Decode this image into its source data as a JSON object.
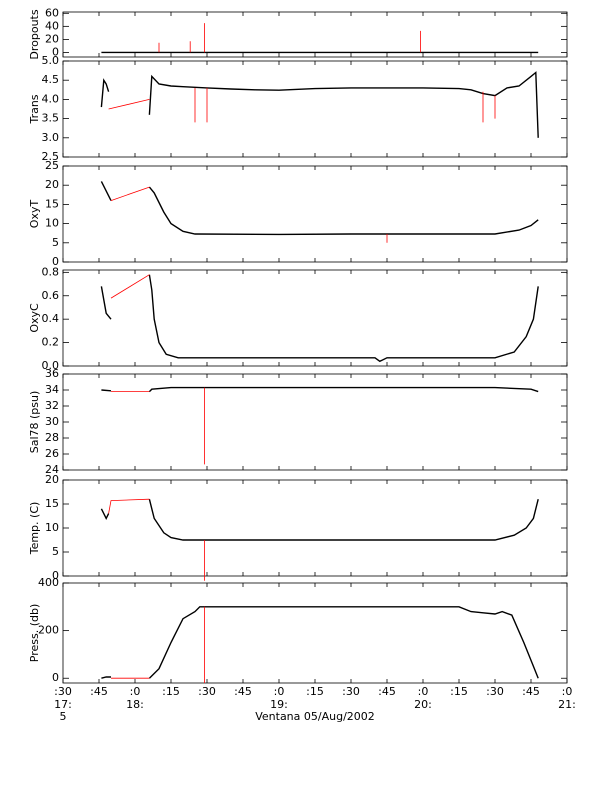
{
  "chart_data": [
    {
      "type": "line",
      "ylabel": "Dropouts",
      "ylim": [
        -7,
        62
      ],
      "yticks": [
        0,
        20,
        40,
        60
      ],
      "series": [
        {
          "color": "#000000",
          "x": [
            "17:46",
            "18:10",
            "18:30",
            "19:00",
            "19:30",
            "20:00",
            "20:30",
            "20:48"
          ],
          "values": [
            0,
            0,
            0,
            0,
            0,
            0,
            0,
            0
          ]
        },
        {
          "color": "#ff0000",
          "x": [
            "18:10",
            "18:10",
            "18:10",
            null,
            "18:23",
            "18:23",
            "18:23",
            null,
            "18:29",
            "18:29",
            "18:29",
            null,
            "19:59",
            "19:59",
            "19:59"
          ],
          "values": [
            0,
            15,
            0,
            null,
            0,
            17,
            0,
            null,
            0,
            45,
            0,
            null,
            0,
            33,
            0
          ]
        }
      ]
    },
    {
      "type": "line",
      "ylabel": "Trans",
      "ylim": [
        2.5,
        5.0
      ],
      "yticks": [
        2.5,
        {
          "value": 3,
          "label": "3.0"
        },
        3.5,
        {
          "value": 4,
          "label": "4.0"
        },
        4.5,
        {
          "value": 5,
          "label": "5.0"
        }
      ],
      "series": [
        {
          "color": "#000000",
          "x": [
            "17:46",
            "17:47",
            "17:48",
            "17:49",
            null,
            "18:06",
            "18:07",
            "18:10",
            "18:15",
            "18:20",
            "18:30",
            "18:40",
            "18:50",
            "19:00",
            "19:15",
            "19:30",
            "19:45",
            "20:00",
            "20:15",
            "20:20",
            "20:25",
            "20:30",
            "20:35",
            "20:40",
            "20:45",
            "20:47",
            "20:48"
          ],
          "values": [
            3.8,
            4.5,
            4.4,
            4.2,
            null,
            3.6,
            4.6,
            4.4,
            4.35,
            4.33,
            4.3,
            4.27,
            4.25,
            4.24,
            4.28,
            4.3,
            4.3,
            4.3,
            4.28,
            4.25,
            4.15,
            4.1,
            4.3,
            4.35,
            4.6,
            4.7,
            3.0
          ]
        },
        {
          "color": "#ff0000",
          "x": [
            "17:49",
            "18:06",
            null,
            "18:25",
            "18:25",
            "18:25",
            null,
            "18:30",
            "18:30",
            "18:30",
            null,
            "20:25",
            "20:25",
            "20:25",
            null,
            "20:30",
            "20:30",
            "20:30"
          ],
          "values": [
            3.75,
            4.0,
            null,
            4.3,
            3.4,
            4.3,
            null,
            4.3,
            3.4,
            4.3,
            null,
            4.2,
            3.4,
            4.2,
            null,
            4.1,
            3.5,
            4.1
          ]
        }
      ]
    },
    {
      "type": "line",
      "ylabel": "OxyT",
      "ylim": [
        0,
        25
      ],
      "yticks": [
        0,
        5,
        10,
        15,
        20,
        25
      ],
      "series": [
        {
          "color": "#000000",
          "x": [
            "17:46",
            "17:50",
            null,
            "18:06",
            "18:08",
            "18:12",
            "18:15",
            "18:20",
            "18:25",
            "19:00",
            "19:30",
            "20:30",
            "20:40",
            "20:45",
            "20:48"
          ],
          "values": [
            21,
            16,
            null,
            19.5,
            18,
            13,
            10,
            8,
            7.3,
            7.2,
            7.3,
            7.3,
            8.3,
            9.5,
            11
          ]
        },
        {
          "color": "#ff0000",
          "x": [
            "17:50",
            "18:06",
            null,
            "19:45",
            "19:45",
            "19:45"
          ],
          "values": [
            16,
            19.5,
            null,
            7.3,
            5,
            7.3
          ]
        }
      ]
    },
    {
      "type": "line",
      "ylabel": "OxyC",
      "ylim": [
        0,
        0.82
      ],
      "yticks": [
        {
          "value": 0,
          "label": "0.0"
        },
        0.2,
        0.4,
        0.6,
        0.8
      ],
      "series": [
        {
          "color": "#000000",
          "x": [
            "17:46",
            "17:48",
            "17:50",
            null,
            "18:06",
            "18:07",
            "18:08",
            "18:10",
            "18:13",
            "18:18",
            "19:40",
            "19:42",
            "19:45",
            "20:30",
            "20:38",
            "20:43",
            "20:46",
            "20:48"
          ],
          "values": [
            0.68,
            0.45,
            0.4,
            null,
            0.78,
            0.65,
            0.4,
            0.2,
            0.1,
            0.07,
            0.07,
            0.04,
            0.07,
            0.07,
            0.12,
            0.25,
            0.4,
            0.68
          ]
        },
        {
          "color": "#ff0000",
          "x": [
            "17:50",
            "18:06"
          ],
          "values": [
            0.58,
            0.78
          ]
        }
      ]
    },
    {
      "type": "line",
      "ylabel": "Sal78 (psu)",
      "ylim": [
        24,
        36
      ],
      "yticks": [
        24,
        26,
        28,
        30,
        32,
        34,
        36
      ],
      "series": [
        {
          "color": "#000000",
          "x": [
            "17:46",
            "17:50",
            null,
            "18:06",
            "18:07",
            "18:15",
            "19:00",
            "20:00",
            "20:30",
            "20:45",
            "20:48"
          ],
          "values": [
            34,
            33.9,
            null,
            33.8,
            34.1,
            34.3,
            34.3,
            34.3,
            34.3,
            34.1,
            33.8
          ]
        },
        {
          "color": "#ff0000",
          "x": [
            "17:50",
            "18:06",
            null,
            "18:29",
            "18:29",
            "18:29"
          ],
          "values": [
            33.8,
            33.8,
            null,
            34.3,
            24.7,
            34.3
          ]
        }
      ]
    },
    {
      "type": "line",
      "ylabel": "Temp. (C)",
      "ylim": [
        0,
        20
      ],
      "yticks": [
        0,
        5,
        10,
        15,
        20
      ],
      "series": [
        {
          "color": "#000000",
          "x": [
            "17:46",
            "17:48",
            "17:49",
            null,
            "18:06",
            "18:07",
            "18:08",
            "18:12",
            "18:15",
            "18:20",
            "19:00",
            "20:30",
            "20:38",
            "20:43",
            "20:46",
            "20:48"
          ],
          "values": [
            14,
            12,
            13,
            null,
            16,
            14,
            12,
            9,
            8,
            7.5,
            7.5,
            7.5,
            8.5,
            10,
            12,
            16
          ]
        },
        {
          "color": "#ff0000",
          "x": [
            "17:49",
            "17:50",
            "18:06",
            null,
            "18:29",
            "18:29",
            "18:29"
          ],
          "values": [
            13,
            15.7,
            16,
            null,
            7.5,
            -1,
            7.5
          ]
        }
      ]
    },
    {
      "type": "line",
      "ylabel": "Press. (db)",
      "ylim": [
        -20,
        400
      ],
      "yticks": [
        0,
        200,
        400
      ],
      "xlim": [
        "17:30",
        "21:00"
      ],
      "xticks": [
        {
          "value": "17:30",
          "label": ":30"
        },
        {
          "value": "17:45",
          "label": ":45"
        },
        {
          "value": "18:00",
          "label": ":0"
        },
        {
          "value": "18:15",
          "label": ":15"
        },
        {
          "value": "18:30",
          "label": ":30"
        },
        {
          "value": "18:45",
          "label": ":45"
        },
        {
          "value": "19:00",
          "label": ":0"
        },
        {
          "value": "19:15",
          "label": ":15"
        },
        {
          "value": "19:30",
          "label": ":30"
        },
        {
          "value": "19:45",
          "label": ":45"
        },
        {
          "value": "20:00",
          "label": ":0"
        },
        {
          "value": "20:15",
          "label": ":15"
        },
        {
          "value": "20:30",
          "label": ":30"
        },
        {
          "value": "20:45",
          "label": ":45"
        },
        {
          "value": "21:00",
          "label": ":0"
        }
      ],
      "x_hour_labels": [
        {
          "value": "17:30",
          "label": "17:"
        },
        {
          "value": "18:00",
          "label": "18:"
        },
        {
          "value": "20:00",
          "label": "20:"
        },
        {
          "value": "21:00",
          "label": "21:"
        }
      ],
      "x_hour_label_19": {
        "value": "19:00",
        "label": "19:"
      },
      "x_corner_label": "5",
      "xlabel": "Ventana 05/Aug/2002",
      "series": [
        {
          "color": "#000000",
          "x": [
            "17:46",
            "17:48",
            "17:50",
            null,
            "18:06",
            "18:10",
            "18:15",
            "18:20",
            "18:25",
            "18:27",
            "19:00",
            "19:30",
            "20:00",
            "20:15",
            "20:20",
            "20:25",
            "20:30",
            "20:33",
            "20:37",
            "20:42",
            "20:46",
            "20:48"
          ],
          "values": [
            0,
            5,
            5,
            null,
            0,
            40,
            150,
            250,
            280,
            300,
            300,
            300,
            300,
            300,
            280,
            275,
            270,
            280,
            265,
            150,
            50,
            0
          ]
        },
        {
          "color": "#ff0000",
          "x": [
            "17:50",
            "18:06",
            null,
            "18:29",
            "18:29",
            "18:29"
          ],
          "values": [
            0,
            0,
            null,
            300,
            -20,
            300
          ]
        }
      ]
    }
  ]
}
